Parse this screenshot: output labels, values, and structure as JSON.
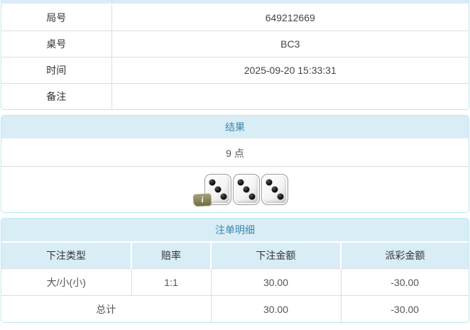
{
  "colors": {
    "panel_border": "#bce8f1",
    "heading_bg": "#d9edf7",
    "heading_text": "#3a87ad",
    "divider": "#dddddd",
    "body_text": "#444444",
    "negative_text": "#ff0000"
  },
  "game_info": {
    "rows": [
      {
        "label": "局号",
        "value": "649212669"
      },
      {
        "label": "桌号",
        "value": "BC3"
      },
      {
        "label": "时间",
        "value": "2025-09-20 15:33:31"
      },
      {
        "label": "备注",
        "value": ""
      }
    ]
  },
  "result": {
    "title": "结果",
    "points": "9 点",
    "dice": [
      3,
      3,
      3
    ],
    "info_badge": "i"
  },
  "bet_details": {
    "title": "注单明细",
    "columns": [
      "下注类型",
      "赔率",
      "下注金额",
      "派彩金额"
    ],
    "rows": [
      {
        "bet_type": "大/小(小)",
        "odds": "1:1",
        "bet_amount": "30.00",
        "payout": "-30.00"
      }
    ],
    "total": {
      "label": "总计",
      "bet_amount": "30.00",
      "payout": "-30.00"
    }
  }
}
